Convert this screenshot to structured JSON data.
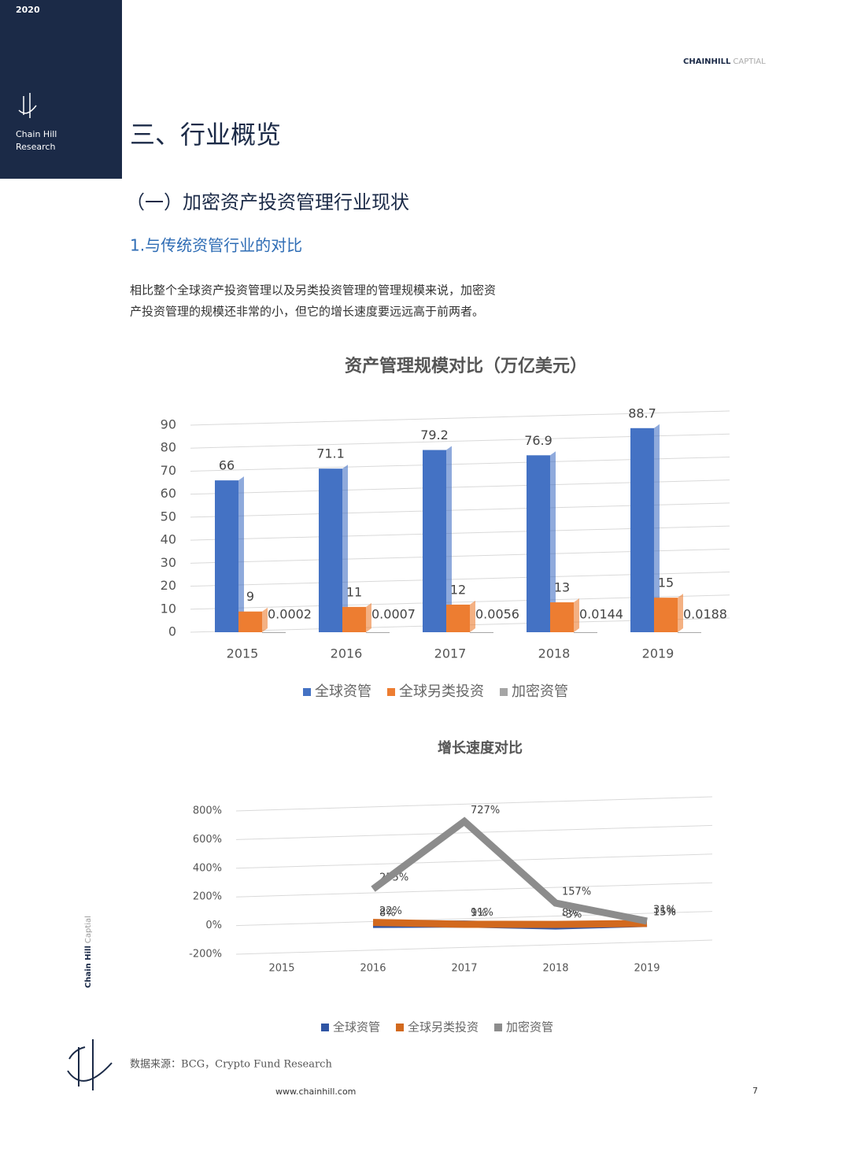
{
  "year": "2020",
  "sidebar_brand": [
    "Chain Hill",
    "Research"
  ],
  "header_logo": {
    "bold": "CHAINHILL",
    "light": "CAPTIAL"
  },
  "section_title": "三、行业概览",
  "subsection_title": "（一）加密资产投资管理行业现状",
  "heading": "1.与传统资管行业的对比",
  "paragraph": [
    "相比整个全球资产投资管理以及另类投资管理的管理规模来说，加密资",
    "产投资管理的规模还非常的小，但它的增长速度要远远高于前两者。"
  ],
  "side_label": {
    "bold": "Chain Hill",
    "light": "Captial"
  },
  "source": "数据来源：BCG，Crypto Fund Research",
  "website": "www.chainhill.com",
  "page_number": 7,
  "chart_data": [
    {
      "type": "bar",
      "title": "资产管理规模对比（万亿美元）",
      "categories": [
        "2015",
        "2016",
        "2017",
        "2018",
        "2019"
      ],
      "series": [
        {
          "name": "全球资管",
          "color": "#4472c4",
          "values": [
            66,
            71.1,
            79.2,
            76.9,
            88.7
          ]
        },
        {
          "name": "全球另类投资",
          "color": "#ed7d31",
          "values": [
            9,
            11,
            12,
            13,
            15
          ]
        },
        {
          "name": "加密资管",
          "color": "#a5a5a5",
          "values": [
            0.0002,
            0.0007,
            0.0056,
            0.0144,
            0.0188
          ]
        }
      ],
      "ylim": [
        0,
        90
      ],
      "yticks": [
        0,
        10,
        20,
        30,
        40,
        50,
        60,
        70,
        80,
        90
      ],
      "grid": true,
      "legend": "bottom"
    },
    {
      "type": "line",
      "title": "增长速度对比",
      "categories": [
        "2015",
        "2016",
        "2017",
        "2018",
        "2019"
      ],
      "series": [
        {
          "name": "全球资管",
          "color": "#2f55a4",
          "values": [
            null,
            8,
            11,
            -3,
            15
          ],
          "value_labels": [
            null,
            "8%",
            "11%",
            "-3%",
            "15%"
          ]
        },
        {
          "name": "全球另类投资",
          "color": "#d2691e",
          "values": [
            null,
            22,
            9,
            8,
            15
          ],
          "value_labels": [
            null,
            "22%",
            "9%",
            "8%",
            "15%"
          ]
        },
        {
          "name": "加密资管",
          "color": "#8c8c8c",
          "values": [
            null,
            255,
            727,
            157,
            31
          ],
          "value_labels": [
            null,
            "255%",
            "727%",
            "157%",
            "31%"
          ]
        }
      ],
      "ylim": [
        -200,
        800
      ],
      "yticks": [
        {
          "value": -200,
          "label": "-200%"
        },
        {
          "value": 0,
          "label": "0%"
        },
        {
          "value": 200,
          "label": "200%"
        },
        {
          "value": 400,
          "label": "400%"
        },
        {
          "value": 600,
          "label": "600%"
        },
        {
          "value": 800,
          "label": "800%"
        }
      ],
      "grid": true,
      "legend": "bottom"
    }
  ]
}
